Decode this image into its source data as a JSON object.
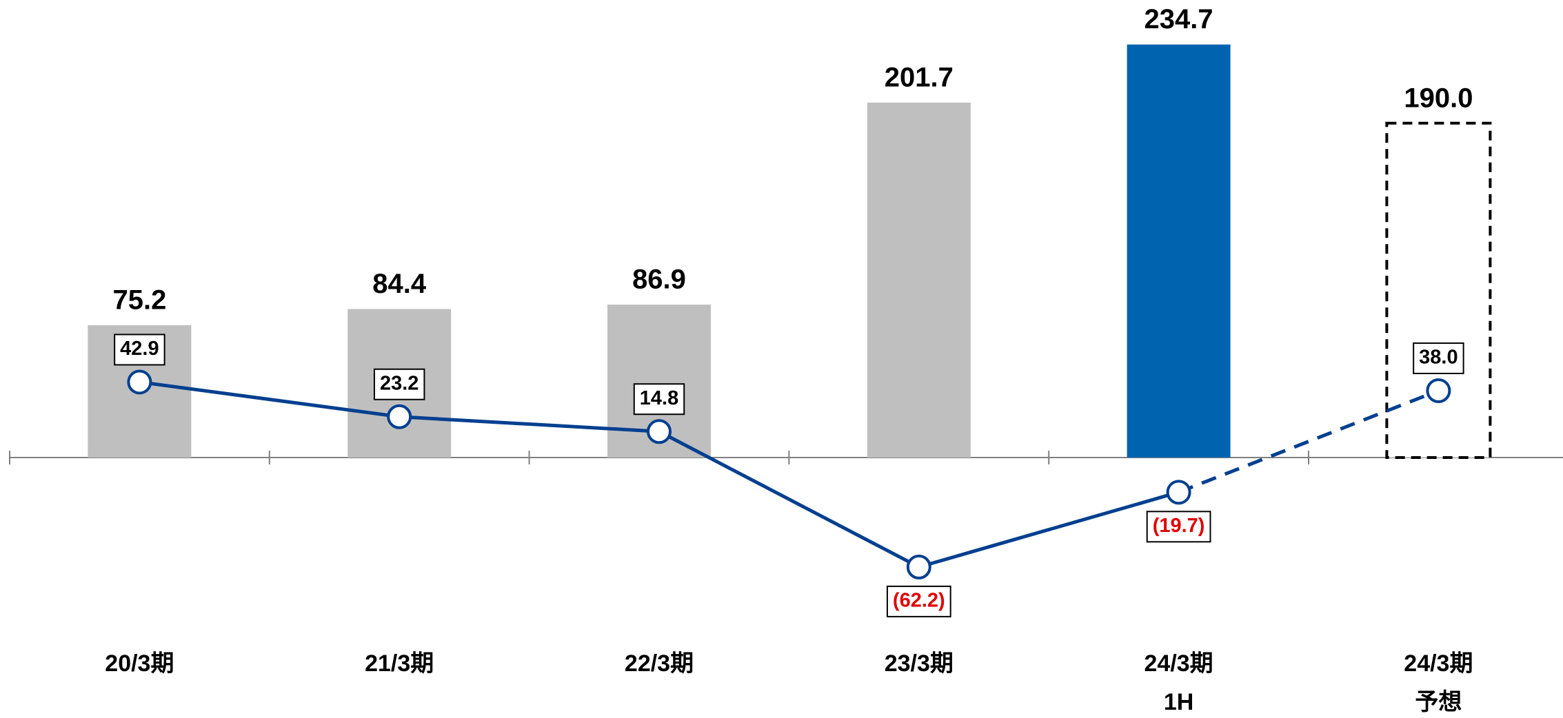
{
  "chart_data": {
    "type": "bar_line",
    "categories": [
      "20/3期",
      "21/3期",
      "22/3期",
      "23/3期",
      "24/3期\n1H",
      "24/3期\n予想"
    ],
    "ylim": [
      -148,
      260
    ],
    "forecast": [
      false,
      false,
      false,
      false,
      false,
      true
    ],
    "negative_label_color": "#e00000",
    "series": [
      {
        "type": "bar",
        "colors": [
          "#bfbfbf",
          "#bfbfbf",
          "#bfbfbf",
          "#bfbfbf",
          "#0063b0",
          "#ffffff"
        ],
        "values": [
          75.2,
          84.4,
          86.9,
          201.7,
          234.7,
          190.0
        ],
        "value_labels": [
          "75.2",
          "84.4",
          "86.9",
          "201.7",
          "234.7",
          "190.0"
        ]
      },
      {
        "type": "line",
        "color": "#003f8f",
        "values": [
          42.9,
          23.2,
          14.8,
          -62.2,
          -19.7,
          38.0
        ],
        "value_labels": [
          "42.9",
          "23.2",
          "14.8",
          "(62.2)",
          "(19.7)",
          "38.0"
        ]
      }
    ]
  }
}
